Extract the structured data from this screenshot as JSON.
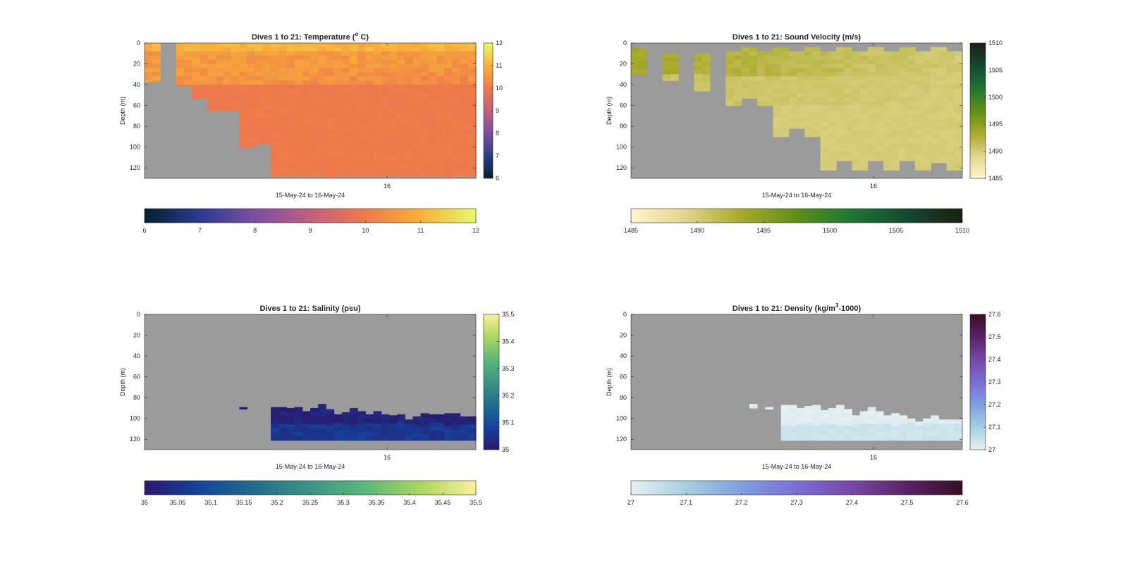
{
  "figure": {
    "background": "#ffffff",
    "nodata_color": "#9b9b9b"
  },
  "chart_data": [
    {
      "id": "temperature",
      "type": "heatmap",
      "title": "Dives 1 to 21: Temperature (",
      "title_super": "o",
      "title_end": " C)",
      "xlabel": "15-May-24 to 16-May-24",
      "ylabel": "Depth (m)",
      "x_ticks": [
        "16"
      ],
      "y_ticks": [
        "0",
        "20",
        "40",
        "60",
        "80",
        "100",
        "120"
      ],
      "ylim": [
        0,
        130
      ],
      "y_reversed": true,
      "colormap": "thermal",
      "colormap_stops": [
        "#04202d",
        "#2a3b8f",
        "#7b4fa1",
        "#c2607d",
        "#ee7a4b",
        "#f9b13a",
        "#e8f96b"
      ],
      "clim": [
        6,
        12
      ],
      "colorbar_ticks": [
        "6",
        "7",
        "8",
        "9",
        "10",
        "11",
        "12"
      ],
      "horizontal_colorbar_ticks": [
        "6",
        "7",
        "8",
        "9",
        "10",
        "11",
        "12"
      ],
      "columns": 42,
      "column_bottoms_m": [
        37,
        37,
        0,
        0,
        41,
        41,
        53,
        53,
        65,
        65,
        65,
        65,
        100,
        100,
        97,
        97,
        128,
        128,
        128,
        128,
        128,
        128,
        128,
        129,
        128,
        128,
        128,
        128,
        128,
        128,
        128,
        128,
        128,
        128,
        128,
        128,
        128,
        128,
        129,
        128,
        128,
        128
      ],
      "column_tops_m": [
        0,
        0,
        130,
        130,
        0,
        0,
        0,
        0,
        0,
        0,
        0,
        0,
        0,
        0,
        0,
        0,
        0,
        0,
        0,
        0,
        0,
        0,
        0,
        0,
        0,
        0,
        0,
        0,
        0,
        0,
        0,
        0,
        0,
        0,
        0,
        0,
        0,
        0,
        0,
        0,
        0,
        0
      ],
      "profile_summary": {
        "surface_value": 11.0,
        "mixed_layer_value": 10.6,
        "deep_value": 10.0
      }
    },
    {
      "id": "sound_velocity",
      "type": "heatmap",
      "title": "Dives 1 to 21: Sound Velocity (m/s)",
      "xlabel": "15-May-24 to 16-May-24",
      "ylabel": "Depth (m)",
      "x_ticks": [
        "16"
      ],
      "y_ticks": [
        "0",
        "20",
        "40",
        "60",
        "80",
        "100",
        "120"
      ],
      "ylim": [
        0,
        130
      ],
      "y_reversed": true,
      "colormap": "speed",
      "colormap_stops": [
        "#fef6ce",
        "#e2d48b",
        "#a8aa2a",
        "#5f8f16",
        "#1c7633",
        "#14482f",
        "#1a1f12"
      ],
      "clim": [
        1485,
        1510
      ],
      "colorbar_ticks": [
        "1485",
        "1490",
        "1495",
        "1500",
        "1505",
        "1510"
      ],
      "horizontal_colorbar_ticks": [
        "1485",
        "1490",
        "1495",
        "1500",
        "1505",
        "1510"
      ],
      "columns": 42,
      "column_bottoms_m": [
        30,
        30,
        0,
        0,
        36,
        36,
        0,
        0,
        46,
        46,
        0,
        0,
        60,
        60,
        53,
        53,
        60,
        60,
        90,
        90,
        82,
        82,
        90,
        90,
        122,
        122,
        113,
        113,
        122,
        122,
        113,
        113,
        122,
        122,
        113,
        113,
        122,
        122,
        115,
        115,
        122,
        122
      ],
      "column_tops_m": [
        5,
        5,
        130,
        130,
        10,
        10,
        130,
        130,
        10,
        10,
        130,
        130,
        8,
        8,
        4,
        4,
        8,
        8,
        4,
        4,
        8,
        8,
        4,
        4,
        8,
        8,
        4,
        4,
        8,
        8,
        4,
        4,
        8,
        8,
        4,
        4,
        8,
        8,
        4,
        4,
        8,
        8
      ],
      "profile_summary": {
        "surface_value": 1493.5,
        "mixed_layer_value": 1491.0,
        "deep_value": 1490.0
      }
    },
    {
      "id": "salinity",
      "type": "heatmap",
      "title": "Dives 1 to 21: Salinity (psu)",
      "xlabel": "15-May-24 to 16-May-24",
      "ylabel": "Depth (m)",
      "x_ticks": [
        "16"
      ],
      "y_ticks": [
        "0",
        "20",
        "40",
        "60",
        "80",
        "100",
        "120"
      ],
      "ylim": [
        0,
        130
      ],
      "y_reversed": true,
      "colormap": "haline",
      "colormap_stops": [
        "#2a186c",
        "#14439c",
        "#206e8b",
        "#3c9387",
        "#5ab978",
        "#aad85f",
        "#fdef9a"
      ],
      "clim": [
        35,
        35.5
      ],
      "colorbar_ticks": [
        "35",
        "35.1",
        "35.2",
        "35.3",
        "35.4",
        "35.5"
      ],
      "horizontal_colorbar_ticks": [
        "35",
        "35.05",
        "35.1",
        "35.15",
        "35.2",
        "35.25",
        "35.3",
        "35.35",
        "35.4",
        "35.45",
        "35.5"
      ],
      "columns": 42,
      "segment_tops_m": [
        0,
        0,
        0,
        0,
        0,
        0,
        0,
        0,
        0,
        0,
        0,
        0,
        89,
        0,
        0,
        0,
        89,
        89,
        90,
        89,
        93,
        90,
        86,
        91,
        96,
        94,
        90,
        93,
        96,
        93,
        96,
        97,
        96,
        101,
        98,
        95,
        96,
        96,
        95,
        95,
        98,
        98
      ],
      "segment_bottoms_m": [
        0,
        0,
        0,
        0,
        0,
        0,
        0,
        0,
        0,
        0,
        0,
        0,
        91,
        0,
        0,
        0,
        121,
        121,
        121,
        121,
        121,
        121,
        121,
        121,
        121,
        121,
        121,
        121,
        121,
        121,
        121,
        121,
        121,
        121,
        121,
        121,
        121,
        121,
        121,
        121,
        121,
        121
      ],
      "profile_summary": {
        "upper_value": 35.02,
        "lower_value": 35.06
      }
    },
    {
      "id": "density",
      "type": "heatmap",
      "title": "Dives 1 to 21: Density (kg/m",
      "title_super": "3",
      "title_end": "-1000)",
      "xlabel": "15-May-24 to 16-May-24",
      "ylabel": "Depth (m)",
      "x_ticks": [
        "16"
      ],
      "y_ticks": [
        "0",
        "20",
        "40",
        "60",
        "80",
        "100",
        "120"
      ],
      "ylim": [
        0,
        130
      ],
      "y_reversed": true,
      "colormap": "dense",
      "colormap_stops": [
        "#e6f1f1",
        "#a6cfe3",
        "#7fa0e0",
        "#7a6fd6",
        "#7747a8",
        "#5c2066",
        "#360e24"
      ],
      "clim": [
        27,
        27.6
      ],
      "colorbar_ticks": [
        "27",
        "27.1",
        "27.2",
        "27.3",
        "27.4",
        "27.5",
        "27.6"
      ],
      "horizontal_colorbar_ticks": [
        "27",
        "27.1",
        "27.2",
        "27.3",
        "27.4",
        "27.5",
        "27.6"
      ],
      "columns": 42,
      "segment_tops_m": [
        0,
        0,
        0,
        0,
        0,
        0,
        0,
        0,
        0,
        0,
        0,
        0,
        0,
        0,
        0,
        86,
        0,
        89,
        0,
        87,
        87,
        90,
        88,
        87,
        92,
        90,
        87,
        91,
        97,
        93,
        89,
        93,
        97,
        95,
        97,
        100,
        103,
        100,
        97,
        101,
        101,
        101
      ],
      "segment_bottoms_m": [
        0,
        0,
        0,
        0,
        0,
        0,
        0,
        0,
        0,
        0,
        0,
        0,
        0,
        0,
        0,
        90,
        0,
        91,
        0,
        121,
        121,
        121,
        121,
        121,
        121,
        121,
        121,
        121,
        121,
        121,
        121,
        121,
        121,
        121,
        121,
        121,
        121,
        121,
        121,
        121,
        121,
        121
      ],
      "profile_summary": {
        "upper_value": 27.01,
        "lower_value": 27.04
      }
    }
  ]
}
